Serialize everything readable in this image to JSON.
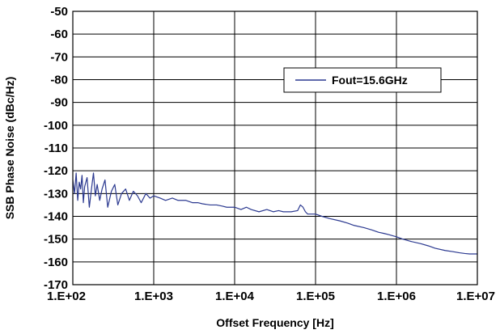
{
  "chart_data": {
    "type": "line",
    "title": "",
    "xlabel": "Offset Frequency [Hz]",
    "ylabel": "SSB Phase Noise (dBc/Hz)",
    "x_scale": "log",
    "xlim": [
      100,
      10000000
    ],
    "ylim": [
      -170,
      -50
    ],
    "x_ticks": [
      {
        "value": 100,
        "label": "1.E+02"
      },
      {
        "value": 1000,
        "label": "1.E+03"
      },
      {
        "value": 10000,
        "label": "1.E+04"
      },
      {
        "value": 100000,
        "label": "1.E+05"
      },
      {
        "value": 1000000,
        "label": "1.E+06"
      },
      {
        "value": 10000000,
        "label": "1.E+07"
      }
    ],
    "y_ticks": [
      {
        "value": -50,
        "label": "-50"
      },
      {
        "value": -60,
        "label": "-60"
      },
      {
        "value": -70,
        "label": "-70"
      },
      {
        "value": -80,
        "label": "-80"
      },
      {
        "value": -90,
        "label": "-90"
      },
      {
        "value": -100,
        "label": "-100"
      },
      {
        "value": -110,
        "label": "-110"
      },
      {
        "value": -120,
        "label": "-120"
      },
      {
        "value": -130,
        "label": "-130"
      },
      {
        "value": -140,
        "label": "-140"
      },
      {
        "value": -150,
        "label": "-150"
      },
      {
        "value": -160,
        "label": "-160"
      },
      {
        "value": -170,
        "label": "-170"
      }
    ],
    "grid": true,
    "legend_position": "upper-right",
    "colors": {
      "series": "#2b3990",
      "grid": "#000000",
      "axis": "#000000"
    },
    "series": [
      {
        "name": "Fout=15.6GHz",
        "x": [
          100,
          105,
          110,
          115,
          120,
          125,
          130,
          135,
          140,
          150,
          160,
          170,
          180,
          190,
          200,
          215,
          230,
          250,
          270,
          300,
          330,
          360,
          400,
          450,
          500,
          560,
          630,
          700,
          800,
          900,
          1000,
          1200,
          1400,
          1700,
          2000,
          2500,
          3000,
          3500,
          4000,
          5000,
          6000,
          7000,
          8000,
          9000,
          10000,
          12000,
          14000,
          16000,
          20000,
          25000,
          30000,
          35000,
          40000,
          50000,
          60000,
          65000,
          70000,
          75000,
          80000,
          90000,
          100000,
          120000,
          150000,
          200000,
          250000,
          300000,
          400000,
          500000,
          600000,
          700000,
          800000,
          1000000,
          1200000,
          1500000,
          2000000,
          2500000,
          3000000,
          4000000,
          5000000,
          6000000,
          7000000,
          8000000,
          9000000,
          10000000
        ],
        "y": [
          -124,
          -130,
          -121,
          -133,
          -125,
          -128,
          -122,
          -134,
          -127,
          -123,
          -136,
          -128,
          -121,
          -131,
          -126,
          -133,
          -128,
          -124,
          -136,
          -129,
          -126,
          -135,
          -130,
          -128,
          -133,
          -129,
          -131,
          -134,
          -130,
          -132,
          -131,
          -132,
          -133,
          -132,
          -133,
          -133,
          -134,
          -134,
          -134.5,
          -135,
          -135,
          -135.5,
          -136,
          -136,
          -136,
          -137,
          -136,
          -137,
          -138,
          -137,
          -138,
          -137.5,
          -138,
          -138,
          -137.5,
          -135,
          -136,
          -138,
          -139,
          -139,
          -139,
          -140,
          -141,
          -142,
          -143,
          -144,
          -145,
          -146,
          -147,
          -147.5,
          -148,
          -149,
          -150,
          -151,
          -152,
          -153,
          -154,
          -155,
          -155.5,
          -156,
          -156.3,
          -156.5,
          -156.5,
          -156.5
        ]
      }
    ]
  }
}
